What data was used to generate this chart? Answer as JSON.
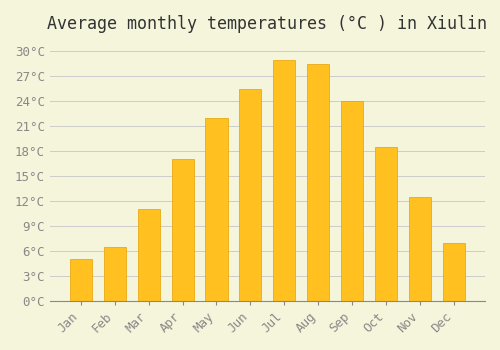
{
  "title": "Average monthly temperatures (°C ) in Xiulin",
  "months": [
    "Jan",
    "Feb",
    "Mar",
    "Apr",
    "May",
    "Jun",
    "Jul",
    "Aug",
    "Sep",
    "Oct",
    "Nov",
    "Dec"
  ],
  "values": [
    5.0,
    6.5,
    11.0,
    17.0,
    22.0,
    25.5,
    29.0,
    28.5,
    24.0,
    18.5,
    12.5,
    7.0
  ],
  "bar_color": "#FFC020",
  "bar_edge_color": "#E8A000",
  "background_color": "#F5F5DC",
  "grid_color": "#CCCCCC",
  "ylim": [
    0,
    31
  ],
  "yticks": [
    0,
    3,
    6,
    9,
    12,
    15,
    18,
    21,
    24,
    27,
    30
  ],
  "ytick_labels": [
    "0°C",
    "3°C",
    "6°C",
    "9°C",
    "12°C",
    "15°C",
    "18°C",
    "21°C",
    "24°C",
    "27°C",
    "30°C"
  ],
  "title_fontsize": 12,
  "tick_fontsize": 9,
  "tick_font_color": "#888888"
}
